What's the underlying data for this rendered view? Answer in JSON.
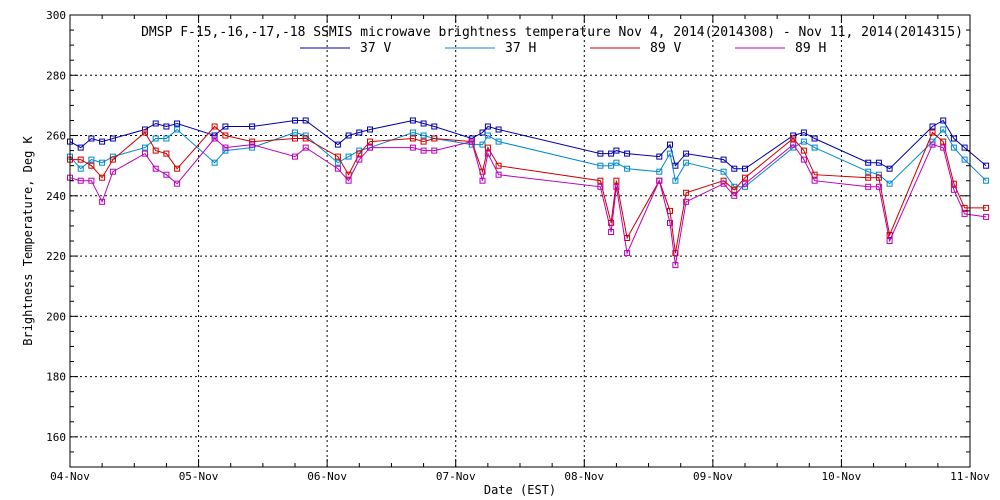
{
  "chart_data": {
    "type": "line",
    "title": "DMSP F-15,-16,-17,-18 SSMIS microwave brightness temperature Nov  4, 2014(2014308) - Nov 11, 2014(2014315)",
    "xlabel": "Date (EST)",
    "ylabel": "Brightness Temperature, Deg K",
    "xlim": [
      "2014-11-04",
      "2014-11-11"
    ],
    "ylim": [
      150,
      300
    ],
    "x_ticks": [
      "04-Nov",
      "05-Nov",
      "06-Nov",
      "07-Nov",
      "08-Nov",
      "09-Nov",
      "10-Nov",
      "11-Nov"
    ],
    "y_ticks": [
      160,
      180,
      200,
      220,
      240,
      260,
      280,
      300
    ],
    "grid": true,
    "legend_placement": "top-center",
    "series": [
      {
        "name": "37 V",
        "color": "#0000aa",
        "points": [
          [
            "2014-11-04 00:00",
            258
          ],
          [
            "2014-11-04 02:00",
            256
          ],
          [
            "2014-11-04 04:00",
            259
          ],
          [
            "2014-11-04 06:00",
            258
          ],
          [
            "2014-11-04 08:00",
            259
          ],
          [
            "2014-11-04 14:00",
            262
          ],
          [
            "2014-11-04 16:00",
            264
          ],
          [
            "2014-11-04 18:00",
            263
          ],
          [
            "2014-11-04 20:00",
            264
          ],
          [
            "2014-11-05 03:00",
            260
          ],
          [
            "2014-11-05 05:00",
            263
          ],
          [
            "2014-11-05 10:00",
            263
          ],
          [
            "2014-11-05 18:00",
            265
          ],
          [
            "2014-11-05 20:00",
            265
          ],
          [
            "2014-11-06 02:00",
            257
          ],
          [
            "2014-11-06 04:00",
            260
          ],
          [
            "2014-11-06 06:00",
            261
          ],
          [
            "2014-11-06 08:00",
            262
          ],
          [
            "2014-11-06 16:00",
            265
          ],
          [
            "2014-11-06 18:00",
            264
          ],
          [
            "2014-11-06 20:00",
            263
          ],
          [
            "2014-11-07 03:00",
            259
          ],
          [
            "2014-11-07 05:00",
            261
          ],
          [
            "2014-11-07 06:00",
            263
          ],
          [
            "2014-11-07 08:00",
            262
          ],
          [
            "2014-11-08 03:00",
            254
          ],
          [
            "2014-11-08 05:00",
            254
          ],
          [
            "2014-11-08 06:00",
            255
          ],
          [
            "2014-11-08 08:00",
            254
          ],
          [
            "2014-11-08 14:00",
            253
          ],
          [
            "2014-11-08 16:00",
            257
          ],
          [
            "2014-11-08 17:00",
            250
          ],
          [
            "2014-11-08 19:00",
            254
          ],
          [
            "2014-11-09 02:00",
            252
          ],
          [
            "2014-11-09 04:00",
            249
          ],
          [
            "2014-11-09 06:00",
            249
          ],
          [
            "2014-11-09 15:00",
            260
          ],
          [
            "2014-11-09 17:00",
            261
          ],
          [
            "2014-11-09 19:00",
            259
          ],
          [
            "2014-11-10 05:00",
            251
          ],
          [
            "2014-11-10 07:00",
            251
          ],
          [
            "2014-11-10 09:00",
            249
          ],
          [
            "2014-11-10 17:00",
            263
          ],
          [
            "2014-11-10 19:00",
            265
          ],
          [
            "2014-11-10 21:00",
            259
          ],
          [
            "2014-11-10 23:00",
            256
          ],
          [
            "2014-11-11 03:00",
            250
          ]
        ]
      },
      {
        "name": "37 H",
        "color": "#0088cc",
        "points": [
          [
            "2014-11-04 00:00",
            253
          ],
          [
            "2014-11-04 02:00",
            249
          ],
          [
            "2014-11-04 04:00",
            252
          ],
          [
            "2014-11-04 06:00",
            251
          ],
          [
            "2014-11-04 08:00",
            253
          ],
          [
            "2014-11-04 14:00",
            256
          ],
          [
            "2014-11-04 16:00",
            259
          ],
          [
            "2014-11-04 18:00",
            259
          ],
          [
            "2014-11-04 20:00",
            262
          ],
          [
            "2014-11-05 03:00",
            251
          ],
          [
            "2014-11-05 05:00",
            255
          ],
          [
            "2014-11-05 10:00",
            256
          ],
          [
            "2014-11-05 18:00",
            261
          ],
          [
            "2014-11-05 20:00",
            260
          ],
          [
            "2014-11-06 02:00",
            251
          ],
          [
            "2014-11-06 04:00",
            253
          ],
          [
            "2014-11-06 06:00",
            255
          ],
          [
            "2014-11-06 08:00",
            256
          ],
          [
            "2014-11-06 16:00",
            261
          ],
          [
            "2014-11-06 18:00",
            260
          ],
          [
            "2014-11-06 20:00",
            259
          ],
          [
            "2014-11-07 03:00",
            257
          ],
          [
            "2014-11-07 05:00",
            257
          ],
          [
            "2014-11-07 06:00",
            260
          ],
          [
            "2014-11-07 08:00",
            258
          ],
          [
            "2014-11-08 03:00",
            250
          ],
          [
            "2014-11-08 05:00",
            250
          ],
          [
            "2014-11-08 06:00",
            251
          ],
          [
            "2014-11-08 08:00",
            249
          ],
          [
            "2014-11-08 14:00",
            248
          ],
          [
            "2014-11-08 16:00",
            254
          ],
          [
            "2014-11-08 17:00",
            245
          ],
          [
            "2014-11-08 19:00",
            251
          ],
          [
            "2014-11-09 02:00",
            248
          ],
          [
            "2014-11-09 04:00",
            243
          ],
          [
            "2014-11-09 06:00",
            243
          ],
          [
            "2014-11-09 15:00",
            256
          ],
          [
            "2014-11-09 17:00",
            258
          ],
          [
            "2014-11-09 19:00",
            256
          ],
          [
            "2014-11-10 05:00",
            248
          ],
          [
            "2014-11-10 07:00",
            247
          ],
          [
            "2014-11-10 09:00",
            244
          ],
          [
            "2014-11-10 17:00",
            258
          ],
          [
            "2014-11-10 19:00",
            262
          ],
          [
            "2014-11-10 21:00",
            256
          ],
          [
            "2014-11-10 23:00",
            252
          ],
          [
            "2014-11-11 03:00",
            245
          ]
        ]
      },
      {
        "name": "89 V",
        "color": "#cc0000",
        "points": [
          [
            "2014-11-04 00:00",
            252
          ],
          [
            "2014-11-04 02:00",
            252
          ],
          [
            "2014-11-04 04:00",
            250
          ],
          [
            "2014-11-04 06:00",
            246
          ],
          [
            "2014-11-04 08:00",
            252
          ],
          [
            "2014-11-04 14:00",
            261
          ],
          [
            "2014-11-04 16:00",
            255
          ],
          [
            "2014-11-04 18:00",
            254
          ],
          [
            "2014-11-04 20:00",
            249
          ],
          [
            "2014-11-05 03:00",
            263
          ],
          [
            "2014-11-05 05:00",
            260
          ],
          [
            "2014-11-05 10:00",
            258
          ],
          [
            "2014-11-05 18:00",
            259
          ],
          [
            "2014-11-05 20:00",
            259
          ],
          [
            "2014-11-06 02:00",
            253
          ],
          [
            "2014-11-06 04:00",
            247
          ],
          [
            "2014-11-06 06:00",
            254
          ],
          [
            "2014-11-06 08:00",
            258
          ],
          [
            "2014-11-06 16:00",
            259
          ],
          [
            "2014-11-06 18:00",
            258
          ],
          [
            "2014-11-06 20:00",
            259
          ],
          [
            "2014-11-07 03:00",
            258
          ],
          [
            "2014-11-07 05:00",
            248
          ],
          [
            "2014-11-07 06:00",
            256
          ],
          [
            "2014-11-07 08:00",
            250
          ],
          [
            "2014-11-08 03:00",
            245
          ],
          [
            "2014-11-08 05:00",
            231
          ],
          [
            "2014-11-08 06:00",
            245
          ],
          [
            "2014-11-08 08:00",
            226
          ],
          [
            "2014-11-08 14:00",
            245
          ],
          [
            "2014-11-08 16:00",
            235
          ],
          [
            "2014-11-08 17:00",
            221
          ],
          [
            "2014-11-08 19:00",
            241
          ],
          [
            "2014-11-09 02:00",
            245
          ],
          [
            "2014-11-09 04:00",
            242
          ],
          [
            "2014-11-09 06:00",
            246
          ],
          [
            "2014-11-09 15:00",
            259
          ],
          [
            "2014-11-09 17:00",
            255
          ],
          [
            "2014-11-09 19:00",
            247
          ],
          [
            "2014-11-10 05:00",
            246
          ],
          [
            "2014-11-10 07:00",
            246
          ],
          [
            "2014-11-10 09:00",
            227
          ],
          [
            "2014-11-10 17:00",
            261
          ],
          [
            "2014-11-10 19:00",
            258
          ],
          [
            "2014-11-10 21:00",
            244
          ],
          [
            "2014-11-10 23:00",
            236
          ],
          [
            "2014-11-11 03:00",
            236
          ]
        ]
      },
      {
        "name": "89 H",
        "color": "#bb00bb",
        "points": [
          [
            "2014-11-04 00:00",
            246
          ],
          [
            "2014-11-04 02:00",
            245
          ],
          [
            "2014-11-04 04:00",
            245
          ],
          [
            "2014-11-04 06:00",
            238
          ],
          [
            "2014-11-04 08:00",
            248
          ],
          [
            "2014-11-04 14:00",
            254
          ],
          [
            "2014-11-04 16:00",
            249
          ],
          [
            "2014-11-04 18:00",
            247
          ],
          [
            "2014-11-04 20:00",
            244
          ],
          [
            "2014-11-05 03:00",
            259
          ],
          [
            "2014-11-05 05:00",
            256
          ],
          [
            "2014-11-05 10:00",
            257
          ],
          [
            "2014-11-05 18:00",
            253
          ],
          [
            "2014-11-05 20:00",
            256
          ],
          [
            "2014-11-06 02:00",
            249
          ],
          [
            "2014-11-06 04:00",
            245
          ],
          [
            "2014-11-06 06:00",
            252
          ],
          [
            "2014-11-06 08:00",
            256
          ],
          [
            "2014-11-06 16:00",
            256
          ],
          [
            "2014-11-06 18:00",
            255
          ],
          [
            "2014-11-06 20:00",
            255
          ],
          [
            "2014-11-07 03:00",
            258
          ],
          [
            "2014-11-07 05:00",
            245
          ],
          [
            "2014-11-07 06:00",
            254
          ],
          [
            "2014-11-07 08:00",
            247
          ],
          [
            "2014-11-08 03:00",
            243
          ],
          [
            "2014-11-08 05:00",
            228
          ],
          [
            "2014-11-08 06:00",
            243
          ],
          [
            "2014-11-08 08:00",
            221
          ],
          [
            "2014-11-08 14:00",
            245
          ],
          [
            "2014-11-08 16:00",
            231
          ],
          [
            "2014-11-08 17:00",
            217
          ],
          [
            "2014-11-08 19:00",
            238
          ],
          [
            "2014-11-09 02:00",
            244
          ],
          [
            "2014-11-09 04:00",
            240
          ],
          [
            "2014-11-09 06:00",
            244
          ],
          [
            "2014-11-09 15:00",
            257
          ],
          [
            "2014-11-09 17:00",
            252
          ],
          [
            "2014-11-09 19:00",
            245
          ],
          [
            "2014-11-10 05:00",
            243
          ],
          [
            "2014-11-10 07:00",
            243
          ],
          [
            "2014-11-10 09:00",
            225
          ],
          [
            "2014-11-10 17:00",
            257
          ],
          [
            "2014-11-10 19:00",
            256
          ],
          [
            "2014-11-10 21:00",
            242
          ],
          [
            "2014-11-10 23:00",
            234
          ],
          [
            "2014-11-11 03:00",
            233
          ]
        ]
      }
    ]
  }
}
